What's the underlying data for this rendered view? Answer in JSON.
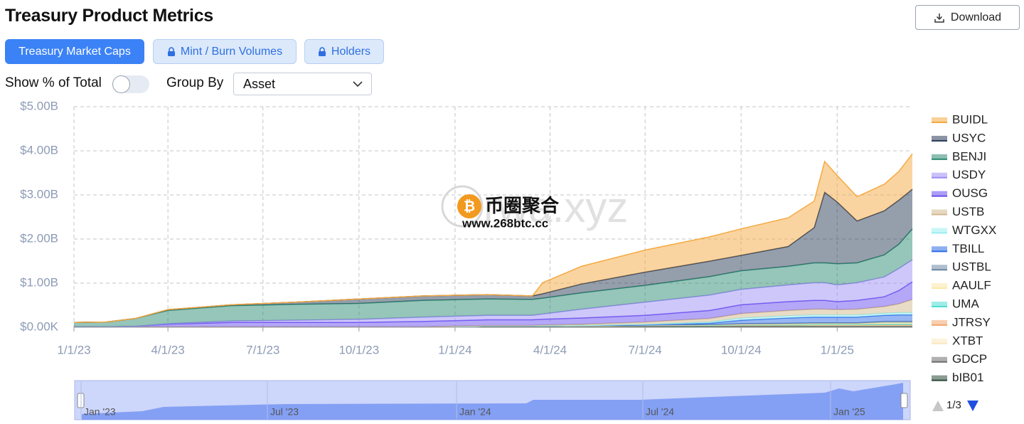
{
  "header": {
    "title": "Treasury Product Metrics",
    "download": "Download"
  },
  "tabs": [
    "Treasury Market Caps",
    "Mint / Burn Volumes",
    "Holders"
  ],
  "controls": {
    "show_percent": "Show % of Total",
    "group_by": "Group By",
    "group_by_value": "Asset"
  },
  "watermark": {
    "brand": "币圈聚合",
    "url": "www.268btc.cc",
    "site": "rwa.xyz"
  },
  "chart_data": {
    "type": "stacked-area",
    "x": [
      "1/1/23",
      "2/1/23",
      "3/1/23",
      "4/1/23",
      "6/1/23",
      "8/1/23",
      "10/1/23",
      "12/1/23",
      "2/1/24",
      "3/15/24",
      "3/25/24",
      "5/1/24",
      "7/1/24",
      "9/1/24",
      "10/1/24",
      "11/15/24",
      "12/10/24",
      "12/20/24",
      "1/1/25",
      "1/20/25",
      "2/15/25",
      "3/1/25",
      "3/14/25"
    ],
    "xlim": [
      "1/1/23",
      "3/14/25"
    ],
    "xticks": [
      "1/1/23",
      "4/1/23",
      "7/1/23",
      "10/1/23",
      "1/1/24",
      "4/1/24",
      "7/1/24",
      "10/1/24",
      "1/1/25"
    ],
    "ylim": [
      0,
      5
    ],
    "yticks": [
      {
        "value": 0,
        "label": "$0.00K"
      },
      {
        "value": 1,
        "label": "$1.00B"
      },
      {
        "value": 2,
        "label": "$2.00B"
      },
      {
        "value": 3,
        "label": "$3.00B"
      },
      {
        "value": 4,
        "label": "$4.00B"
      },
      {
        "value": 5,
        "label": "$5.00B"
      }
    ],
    "grid": true,
    "legend": "right",
    "series": [
      {
        "name": "BUIDL",
        "color": "#f5a941",
        "values": [
          0,
          0,
          0,
          0,
          0,
          0,
          0,
          0,
          0,
          0,
          0.25,
          0.4,
          0.5,
          0.55,
          0.6,
          0.65,
          0.6,
          0.7,
          0.6,
          0.55,
          0.6,
          0.65,
          0.8
        ]
      },
      {
        "name": "USYC",
        "color": "#2b3d57",
        "values": [
          0,
          0,
          0,
          0.02,
          0.02,
          0.05,
          0.1,
          0.1,
          0.1,
          0.08,
          0.1,
          0.2,
          0.3,
          0.35,
          0.35,
          0.45,
          0.8,
          1.6,
          1.4,
          0.95,
          1.0,
          1.0,
          0.9
        ]
      },
      {
        "name": "BENJI",
        "color": "#2e8b73",
        "values": [
          0.1,
          0.11,
          0.18,
          0.3,
          0.35,
          0.36,
          0.36,
          0.38,
          0.37,
          0.36,
          0.36,
          0.37,
          0.38,
          0.42,
          0.42,
          0.42,
          0.45,
          0.45,
          0.48,
          0.45,
          0.5,
          0.55,
          0.7
        ]
      },
      {
        "name": "USDY",
        "color": "#9d8ff5",
        "values": [
          0,
          0,
          0,
          0.01,
          0.03,
          0.05,
          0.07,
          0.1,
          0.1,
          0.1,
          0.12,
          0.2,
          0.3,
          0.35,
          0.35,
          0.38,
          0.4,
          0.4,
          0.38,
          0.4,
          0.45,
          0.5,
          0.5
        ]
      },
      {
        "name": "OUSG",
        "color": "#6a4ff0",
        "values": [
          0,
          0,
          0.01,
          0.06,
          0.1,
          0.1,
          0.1,
          0.12,
          0.13,
          0.13,
          0.13,
          0.14,
          0.15,
          0.18,
          0.2,
          0.2,
          0.2,
          0.2,
          0.18,
          0.2,
          0.22,
          0.3,
          0.4
        ]
      },
      {
        "name": "USTB",
        "color": "#d2b98e",
        "values": [
          0,
          0,
          0,
          0,
          0,
          0,
          0,
          0,
          0.01,
          0.01,
          0.02,
          0.03,
          0.05,
          0.08,
          0.1,
          0.12,
          0.13,
          0.13,
          0.12,
          0.13,
          0.15,
          0.2,
          0.3
        ]
      },
      {
        "name": "WTGXX",
        "color": "#9beef0",
        "values": [
          0,
          0,
          0,
          0,
          0,
          0,
          0,
          0,
          0,
          0,
          0,
          0,
          0.02,
          0.03,
          0.05,
          0.05,
          0.05,
          0.05,
          0.05,
          0.05,
          0.05,
          0.05,
          0.05
        ]
      },
      {
        "name": "TBILL",
        "color": "#2f6ee8",
        "values": [
          0,
          0,
          0,
          0,
          0,
          0,
          0,
          0,
          0,
          0,
          0,
          0,
          0,
          0.03,
          0.08,
          0.12,
          0.13,
          0.13,
          0.13,
          0.13,
          0.14,
          0.15,
          0.15
        ]
      },
      {
        "name": "USTBL",
        "color": "#6f8aa6",
        "values": [
          0,
          0,
          0,
          0,
          0,
          0,
          0,
          0,
          0,
          0,
          0,
          0.01,
          0.01,
          0.01,
          0.02,
          0.02,
          0.02,
          0.02,
          0.02,
          0.02,
          0.03,
          0.03,
          0.03
        ]
      },
      {
        "name": "AAULF",
        "color": "#fbe8a6",
        "values": [
          0,
          0,
          0,
          0,
          0,
          0,
          0,
          0,
          0,
          0,
          0,
          0,
          0,
          0.01,
          0.01,
          0.02,
          0.02,
          0.02,
          0.02,
          0.02,
          0.03,
          0.03,
          0.03
        ]
      },
      {
        "name": "UMA",
        "color": "#4fded2",
        "values": [
          0,
          0,
          0,
          0,
          0,
          0,
          0,
          0,
          0,
          0,
          0,
          0,
          0,
          0,
          0.01,
          0.01,
          0.01,
          0.01,
          0.01,
          0.01,
          0.02,
          0.02,
          0.02
        ]
      },
      {
        "name": "JTRSY",
        "color": "#f2a86f",
        "values": [
          0,
          0,
          0,
          0,
          0,
          0,
          0,
          0,
          0,
          0,
          0,
          0,
          0,
          0,
          0,
          0,
          0.01,
          0.01,
          0.01,
          0.01,
          0.01,
          0.01,
          0.01
        ]
      },
      {
        "name": "XTBT",
        "color": "#fbe9c0",
        "values": [
          0,
          0,
          0,
          0,
          0,
          0,
          0,
          0,
          0,
          0,
          0,
          0,
          0.01,
          0.01,
          0.01,
          0.01,
          0.01,
          0.01,
          0.01,
          0.01,
          0.01,
          0.01,
          0.01
        ]
      },
      {
        "name": "GDCP",
        "color": "#707070",
        "values": [
          0,
          0,
          0,
          0,
          0,
          0,
          0,
          0,
          0.01,
          0.01,
          0.01,
          0.01,
          0.01,
          0.01,
          0.01,
          0.01,
          0.01,
          0.01,
          0.01,
          0.01,
          0.01,
          0.01,
          0.01
        ]
      },
      {
        "name": "bIB01",
        "color": "#2c4a3b",
        "values": [
          0.01,
          0.01,
          0.01,
          0.01,
          0.01,
          0.01,
          0.01,
          0.01,
          0.02,
          0.02,
          0.02,
          0.02,
          0.02,
          0.02,
          0.02,
          0.02,
          0.02,
          0.02,
          0.02,
          0.02,
          0.02,
          0.02,
          0.02
        ]
      }
    ]
  },
  "legend_pager": "1/3",
  "navigator": {
    "labels": [
      "Jan '23",
      "Jul '23",
      "Jan '24",
      "Jul '24",
      "Jan '25"
    ]
  }
}
